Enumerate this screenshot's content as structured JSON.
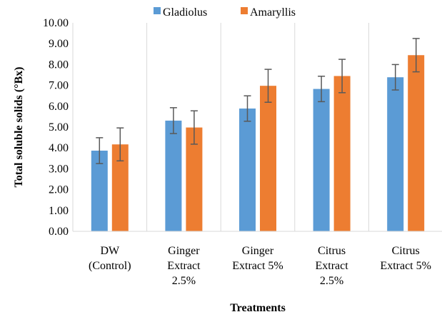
{
  "chart_data": {
    "type": "bar",
    "categories": [
      [
        "DW",
        "(Control)"
      ],
      [
        "Ginger",
        "Extract",
        "2.5%"
      ],
      [
        "Ginger",
        "Extract 5%"
      ],
      [
        "Citrus",
        "Extract",
        "2.5%"
      ],
      [
        "Citrus",
        "Extract 5%"
      ]
    ],
    "series": [
      {
        "name": "Gladiolus",
        "color": "#5b9bd5",
        "values": [
          3.87,
          5.31,
          5.89,
          6.83,
          7.39
        ],
        "errors": [
          0.62,
          0.62,
          0.61,
          0.61,
          0.61
        ]
      },
      {
        "name": "Amaryllis",
        "color": "#ed7d31",
        "values": [
          4.17,
          4.98,
          6.98,
          7.45,
          8.45
        ],
        "errors": [
          0.79,
          0.8,
          0.79,
          0.8,
          0.8
        ]
      }
    ],
    "xlabel": "Treatments",
    "ylabel": "Total soluble solids (°Bx)",
    "ylim": [
      0,
      10
    ],
    "yticks": [
      "0.00",
      "1.00",
      "2.00",
      "3.00",
      "4.00",
      "5.00",
      "6.00",
      "7.00",
      "8.00",
      "9.00",
      "10.00"
    ],
    "grid": "vertical-between-categories",
    "legend_position": "top"
  }
}
